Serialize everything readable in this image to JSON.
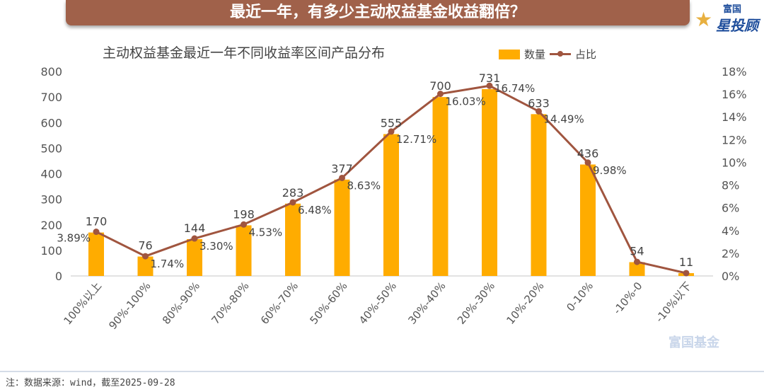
{
  "header": {
    "title": "最近一年，有多少主动权益基金收益翻倍？",
    "logo_text_top": "富国",
    "logo_text_main": "星投顾"
  },
  "watermark": "富国基金",
  "footer": {
    "note": "注：数据来源：wind，截至2025-09-28"
  },
  "colors": {
    "bar": "#FFAC00",
    "line": "#A0553F",
    "banner": "#A0614A"
  },
  "chart_data": {
    "type": "bar+line",
    "title": "主动权益基金最近一年不同收益率区间产品分布",
    "legend_position": "top-right",
    "categories": [
      "100%以上",
      "90%-100%",
      "80%-90%",
      "70%-80%",
      "60%-70%",
      "50%-60%",
      "40%-50%",
      "30%-40%",
      "20%-30%",
      "10%-20%",
      "0-10%",
      "-10%-0",
      "-10%以下"
    ],
    "series": [
      {
        "name": "数量",
        "type": "bar",
        "axis": "left",
        "values": [
          170,
          76,
          144,
          198,
          283,
          377,
          555,
          700,
          731,
          633,
          436,
          54,
          11
        ]
      },
      {
        "name": "占比",
        "type": "line",
        "axis": "right",
        "values": [
          3.89,
          1.74,
          3.3,
          4.53,
          6.48,
          8.63,
          12.71,
          16.03,
          16.74,
          14.49,
          9.98,
          1.24,
          0.25
        ],
        "labels": [
          "3.89%",
          "1.74%",
          "3.30%",
          "4.53%",
          "6.48%",
          "8.63%",
          "12.71%",
          "16.03%",
          "16.74%",
          "14.49%",
          "9.98%",
          null,
          null
        ]
      }
    ],
    "left_axis": {
      "ylim": [
        0,
        800
      ],
      "ticks": [
        "0",
        "100",
        "200",
        "300",
        "400",
        "500",
        "600",
        "700",
        "800"
      ]
    },
    "right_axis": {
      "ylim": [
        0,
        18
      ],
      "ticks": [
        "0%",
        "2%",
        "4%",
        "6%",
        "8%",
        "10%",
        "12%",
        "14%",
        "16%",
        "18%"
      ]
    },
    "grid": false
  }
}
